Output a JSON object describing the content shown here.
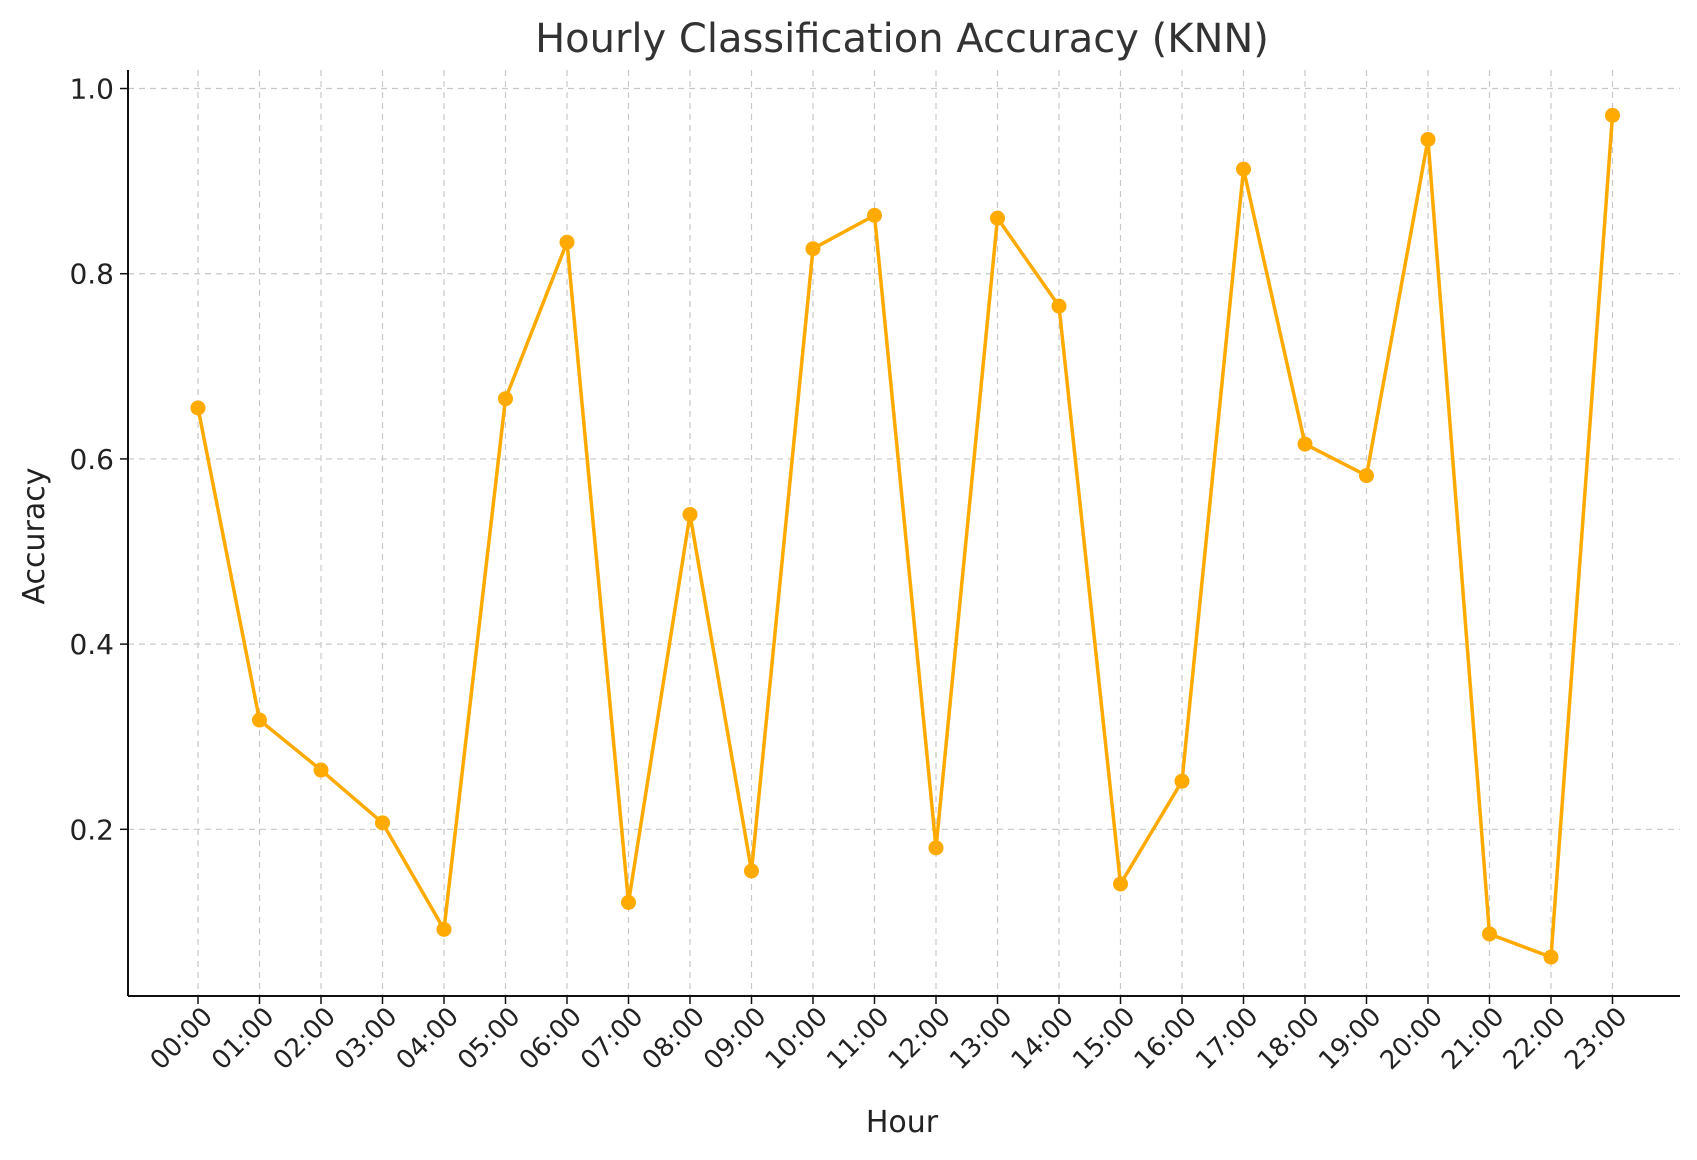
{
  "chart_data": {
    "type": "line",
    "title": "Hourly Classification Accuracy (KNN)",
    "xlabel": "Hour",
    "ylabel": "Accuracy",
    "categories": [
      "00:00",
      "01:00",
      "02:00",
      "03:00",
      "04:00",
      "05:00",
      "06:00",
      "07:00",
      "08:00",
      "09:00",
      "10:00",
      "11:00",
      "12:00",
      "13:00",
      "14:00",
      "15:00",
      "16:00",
      "17:00",
      "18:00",
      "19:00",
      "20:00",
      "21:00",
      "22:00",
      "23:00"
    ],
    "series": [
      {
        "values": [
          0.655,
          0.318,
          0.264,
          0.207,
          0.092,
          0.665,
          0.834,
          0.121,
          0.54,
          0.155,
          0.827,
          0.863,
          0.18,
          0.86,
          0.765,
          0.141,
          0.252,
          0.913,
          0.616,
          0.582,
          0.945,
          0.087,
          0.062,
          0.971
        ],
        "color": "#FFAA00",
        "marker": "circle"
      }
    ],
    "ylim": [
      0.02,
      1.02
    ],
    "yticks": [
      0.2,
      0.4,
      0.6,
      0.8,
      1.0
    ],
    "ytick_labels": [
      "0.2",
      "0.4",
      "0.6",
      "0.8",
      "1.0"
    ],
    "grid": true,
    "legend": "none"
  }
}
